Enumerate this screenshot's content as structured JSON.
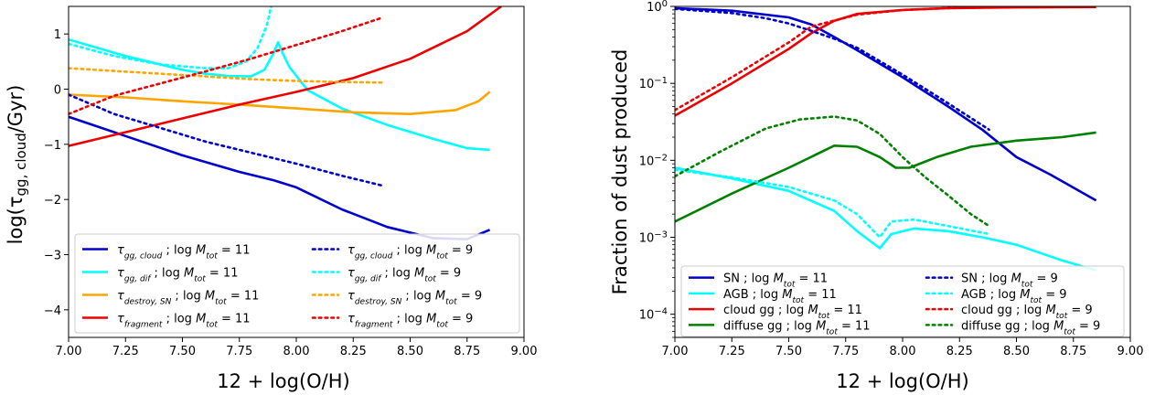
{
  "chart_data": [
    {
      "type": "line",
      "xlabel": "12 + log(O/H)",
      "ylabel": "log(τgg,cloud/Gyr)",
      "xlim": [
        7.0,
        9.0
      ],
      "ylim": [
        -4.5,
        1.5
      ],
      "xscale": "linear",
      "yscale": "linear",
      "grid": false,
      "legend_position": "lower-center",
      "legend_columns": 2,
      "xticks": [
        7.0,
        7.25,
        7.5,
        7.75,
        8.0,
        8.25,
        8.5,
        8.75,
        9.0
      ],
      "xtick_labels": [
        "7.00",
        "7.25",
        "7.50",
        "7.75",
        "8.00",
        "8.25",
        "8.50",
        "8.75",
        "9.00"
      ],
      "yticks": [
        1,
        0,
        -1,
        -2,
        -3,
        -4
      ],
      "ytick_labels": [
        "1",
        "0",
        "−1",
        "−2",
        "−3",
        "−4"
      ],
      "series": [
        {
          "name": "τgg,cloud ; log Mtot = 11",
          "color": "#0000cc",
          "style": "solid",
          "x": [
            7.0,
            7.25,
            7.5,
            7.75,
            7.9,
            8.0,
            8.2,
            8.4,
            8.6,
            8.75,
            8.85
          ],
          "y": [
            -0.5,
            -0.85,
            -1.2,
            -1.5,
            -1.65,
            -1.78,
            -2.18,
            -2.5,
            -2.7,
            -2.72,
            -2.55
          ]
        },
        {
          "name": "τgg,dif ; log Mtot = 11",
          "color": "#00ffff",
          "style": "solid",
          "x": [
            7.0,
            7.25,
            7.5,
            7.6,
            7.7,
            7.8,
            7.86,
            7.9,
            7.92,
            7.94,
            7.97,
            8.05,
            8.2,
            8.4,
            8.6,
            8.75,
            8.85
          ],
          "y": [
            0.9,
            0.6,
            0.35,
            0.28,
            0.24,
            0.23,
            0.35,
            0.65,
            0.85,
            0.65,
            0.4,
            -0.02,
            -0.35,
            -0.65,
            -0.9,
            -1.07,
            -1.1
          ]
        },
        {
          "name": "τdestroy,SN ; log Mtot = 11",
          "color": "#ffa500",
          "style": "solid",
          "x": [
            7.0,
            7.25,
            7.5,
            7.75,
            8.0,
            8.25,
            8.5,
            8.7,
            8.8,
            8.85
          ],
          "y": [
            -0.1,
            -0.15,
            -0.22,
            -0.28,
            -0.35,
            -0.42,
            -0.45,
            -0.38,
            -0.22,
            -0.05
          ]
        },
        {
          "name": "τfragment ; log Mtot = 11",
          "color": "#ee0000",
          "style": "solid",
          "x": [
            7.0,
            7.25,
            7.5,
            7.75,
            8.0,
            8.25,
            8.5,
            8.75,
            8.9
          ],
          "y": [
            -1.03,
            -0.78,
            -0.53,
            -0.28,
            -0.05,
            0.2,
            0.55,
            1.05,
            1.5
          ]
        },
        {
          "name": "τgg,cloud ; log Mtot = 9",
          "color": "#0000cc",
          "style": "dotted",
          "x": [
            7.0,
            7.2,
            7.4,
            7.6,
            7.8,
            8.0,
            8.2,
            8.38
          ],
          "y": [
            -0.1,
            -0.45,
            -0.7,
            -0.95,
            -1.15,
            -1.35,
            -1.57,
            -1.75
          ]
        },
        {
          "name": "τgg,dif ; log Mtot = 9",
          "color": "#00ffff",
          "style": "dotted",
          "x": [
            7.0,
            7.2,
            7.4,
            7.6,
            7.7,
            7.78,
            7.83,
            7.87,
            7.89
          ],
          "y": [
            0.82,
            0.6,
            0.45,
            0.38,
            0.38,
            0.5,
            0.75,
            1.15,
            1.5
          ]
        },
        {
          "name": "τdestroy,SN ; log Mtot = 9",
          "color": "#ffa500",
          "style": "dotted",
          "x": [
            7.0,
            7.2,
            7.4,
            7.6,
            7.8,
            8.0,
            8.2,
            8.38
          ],
          "y": [
            0.38,
            0.33,
            0.28,
            0.23,
            0.18,
            0.15,
            0.13,
            0.12
          ]
        },
        {
          "name": "τfragment ; log Mtot = 9",
          "color": "#ee0000",
          "style": "dotted",
          "x": [
            7.0,
            7.2,
            7.4,
            7.6,
            7.8,
            8.0,
            8.2,
            8.38
          ],
          "y": [
            -0.45,
            -0.12,
            0.1,
            0.32,
            0.55,
            0.8,
            1.05,
            1.3
          ]
        }
      ],
      "legend_items": [
        {
          "sym": "τ",
          "sub": "gg, cloud",
          "suffix": " ; log ",
          "mvar": "M",
          "msub": "tot",
          "eq": " = 11",
          "color": "#0000cc",
          "style": "solid"
        },
        {
          "sym": "τ",
          "sub": "gg, dif",
          "suffix": " ; log ",
          "mvar": "M",
          "msub": "tot",
          "eq": " = 11",
          "color": "#00ffff",
          "style": "solid"
        },
        {
          "sym": "τ",
          "sub": "destroy, SN",
          "suffix": " ; log ",
          "mvar": "M",
          "msub": "tot",
          "eq": " = 11",
          "color": "#ffa500",
          "style": "solid"
        },
        {
          "sym": "τ",
          "sub": "fragment",
          "suffix": " ; log ",
          "mvar": "M",
          "msub": "tot",
          "eq": " = 11",
          "color": "#ee0000",
          "style": "solid"
        },
        {
          "sym": "τ",
          "sub": "gg, cloud",
          "suffix": " ; log ",
          "mvar": "M",
          "msub": "tot",
          "eq": " = 9",
          "color": "#0000cc",
          "style": "dotted"
        },
        {
          "sym": "τ",
          "sub": "gg, dif",
          "suffix": " ; log ",
          "mvar": "M",
          "msub": "tot",
          "eq": " = 9",
          "color": "#00ffff",
          "style": "dotted"
        },
        {
          "sym": "τ",
          "sub": "destroy, SN",
          "suffix": " ; log ",
          "mvar": "M",
          "msub": "tot",
          "eq": " = 9",
          "color": "#ffa500",
          "style": "dotted"
        },
        {
          "sym": "τ",
          "sub": "fragment",
          "suffix": " ; log ",
          "mvar": "M",
          "msub": "tot",
          "eq": " = 9",
          "color": "#ee0000",
          "style": "dotted"
        }
      ]
    },
    {
      "type": "line",
      "xlabel": "12 + log(O/H)",
      "ylabel": "Fraction of dust produced",
      "xlim": [
        7.0,
        9.0
      ],
      "ylim": [
        5e-05,
        1.0
      ],
      "xscale": "linear",
      "yscale": "log",
      "grid": false,
      "legend_position": "lower-center",
      "legend_columns": 2,
      "xticks": [
        7.0,
        7.25,
        7.5,
        7.75,
        8.0,
        8.25,
        8.5,
        8.75,
        9.0
      ],
      "xtick_labels": [
        "7.00",
        "7.25",
        "7.50",
        "7.75",
        "8.00",
        "8.25",
        "8.50",
        "8.75",
        "9.00"
      ],
      "yticks": [
        1,
        0.1,
        0.01,
        0.001,
        0.0001
      ],
      "ytick_labels": [
        {
          "base": "10",
          "exp": "0"
        },
        {
          "base": "10",
          "exp": "−1"
        },
        {
          "base": "10",
          "exp": "−2"
        },
        {
          "base": "10",
          "exp": "−3"
        },
        {
          "base": "10",
          "exp": "−4"
        }
      ],
      "series": [
        {
          "name": "SN ; log Mtot = 11",
          "color": "#0000cc",
          "style": "solid",
          "x": [
            7.0,
            7.25,
            7.5,
            7.6,
            7.7,
            7.8,
            8.0,
            8.2,
            8.35,
            8.5,
            8.65,
            8.85
          ],
          "y": [
            0.95,
            0.88,
            0.72,
            0.58,
            0.4,
            0.27,
            0.12,
            0.05,
            0.025,
            0.011,
            0.0065,
            0.003
          ]
        },
        {
          "name": "AGB ; log Mtot = 11",
          "color": "#00ffff",
          "style": "solid",
          "x": [
            7.0,
            7.25,
            7.5,
            7.7,
            7.8,
            7.9,
            7.95,
            8.05,
            8.2,
            8.35,
            8.5,
            8.7,
            8.85
          ],
          "y": [
            0.008,
            0.0058,
            0.004,
            0.0022,
            0.0012,
            0.00072,
            0.0011,
            0.0013,
            0.0012,
            0.001,
            0.0008,
            0.0005,
            0.00037
          ]
        },
        {
          "name": "cloud gg ; log Mtot = 11",
          "color": "#ee0000",
          "style": "solid",
          "x": [
            7.0,
            7.25,
            7.5,
            7.6,
            7.7,
            7.8,
            8.0,
            8.2,
            8.5,
            8.85
          ],
          "y": [
            0.038,
            0.1,
            0.28,
            0.45,
            0.65,
            0.8,
            0.9,
            0.95,
            0.97,
            0.98
          ]
        },
        {
          "name": "diffuse gg ; log Mtot = 11",
          "color": "#008000",
          "style": "solid",
          "x": [
            7.0,
            7.25,
            7.5,
            7.7,
            7.8,
            7.9,
            7.97,
            8.03,
            8.15,
            8.3,
            8.5,
            8.7,
            8.85
          ],
          "y": [
            0.0016,
            0.0037,
            0.008,
            0.0155,
            0.015,
            0.011,
            0.008,
            0.008,
            0.011,
            0.015,
            0.018,
            0.02,
            0.023
          ]
        },
        {
          "name": "SN ; log Mtot = 9",
          "color": "#0000cc",
          "style": "dotted",
          "x": [
            7.0,
            7.25,
            7.4,
            7.5,
            7.6,
            7.7,
            7.8,
            8.0,
            8.2,
            8.38
          ],
          "y": [
            0.93,
            0.82,
            0.7,
            0.6,
            0.48,
            0.38,
            0.29,
            0.13,
            0.055,
            0.025
          ]
        },
        {
          "name": "AGB ; log Mtot = 9",
          "color": "#00ffff",
          "style": "dotted",
          "x": [
            7.0,
            7.25,
            7.5,
            7.7,
            7.8,
            7.9,
            7.95,
            8.05,
            8.2,
            8.38
          ],
          "y": [
            0.0075,
            0.006,
            0.0045,
            0.003,
            0.002,
            0.001,
            0.0016,
            0.0017,
            0.0014,
            0.0011
          ]
        },
        {
          "name": "cloud gg ; log Mtot = 9",
          "color": "#ee0000",
          "style": "dotted",
          "x": [
            7.0,
            7.25,
            7.5,
            7.6,
            7.8,
            8.0,
            8.2,
            8.38
          ],
          "y": [
            0.045,
            0.12,
            0.34,
            0.55,
            0.78,
            0.9,
            0.95,
            0.97
          ]
        },
        {
          "name": "diffuse gg ; log Mtot = 9",
          "color": "#008000",
          "style": "dotted",
          "x": [
            7.0,
            7.2,
            7.4,
            7.55,
            7.7,
            7.8,
            7.9,
            8.0,
            8.1,
            8.2,
            8.3,
            8.38
          ],
          "y": [
            0.0062,
            0.013,
            0.026,
            0.034,
            0.037,
            0.033,
            0.022,
            0.011,
            0.006,
            0.0035,
            0.002,
            0.0014
          ]
        }
      ],
      "legend_items": [
        {
          "label": "SN",
          "suffix": " ; log ",
          "mvar": "M",
          "msub": "tot",
          "eq": " = 11",
          "color": "#0000cc",
          "style": "solid"
        },
        {
          "label": "AGB",
          "suffix": " ; log ",
          "mvar": "M",
          "msub": "tot",
          "eq": " = 11",
          "color": "#00ffff",
          "style": "solid"
        },
        {
          "label": "cloud gg",
          "suffix": " ; log ",
          "mvar": "M",
          "msub": "tot",
          "eq": " = 11",
          "color": "#ee0000",
          "style": "solid"
        },
        {
          "label": "diffuse gg",
          "suffix": " ; log ",
          "mvar": "M",
          "msub": "tot",
          "eq": " = 11",
          "color": "#008000",
          "style": "solid"
        },
        {
          "label": "SN",
          "suffix": " ; log ",
          "mvar": "M",
          "msub": "tot",
          "eq": " = 9",
          "color": "#0000cc",
          "style": "dotted"
        },
        {
          "label": "AGB",
          "suffix": " ; log ",
          "mvar": "M",
          "msub": "tot",
          "eq": " = 9",
          "color": "#00ffff",
          "style": "dotted"
        },
        {
          "label": "cloud gg",
          "suffix": " ; log ",
          "mvar": "M",
          "msub": "tot",
          "eq": " = 9",
          "color": "#ee0000",
          "style": "dotted"
        },
        {
          "label": "diffuse gg",
          "suffix": " ; log ",
          "mvar": "M",
          "msub": "tot",
          "eq": " = 9",
          "color": "#008000",
          "style": "dotted"
        }
      ]
    }
  ]
}
